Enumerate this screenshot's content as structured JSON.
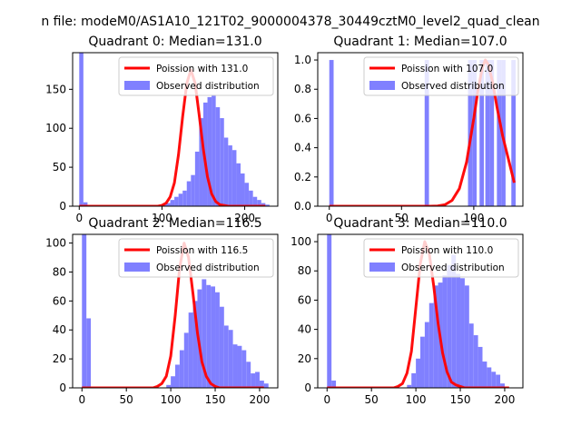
{
  "figure": {
    "suptitle": "n file: modeM0/AS1A10_121T02_9000004378_30449cztM0_level2_quad_clean"
  },
  "colors": {
    "poisson_line": "#ff0000",
    "histogram": "#8080ff",
    "axis": "#000000",
    "background": "#ffffff"
  },
  "chart_data": [
    {
      "type": "bar",
      "panel": "top-left",
      "title": "Quadrant 0: Median=131.0",
      "xlabel": "",
      "ylabel": "",
      "xlim": [
        -8,
        240
      ],
      "ylim": [
        0,
        197
      ],
      "xticks": [
        0,
        100,
        200
      ],
      "yticks": [
        0,
        50,
        100,
        150
      ],
      "legend": {
        "placement": "top-right",
        "entries": [
          "Poission with 131.0",
          "Observed distribution"
        ]
      },
      "bin_width": 5,
      "histogram": {
        "name": "Observed distribution",
        "x": [
          0,
          5,
          100,
          105,
          110,
          115,
          120,
          125,
          130,
          135,
          140,
          145,
          150,
          155,
          160,
          165,
          170,
          175,
          180,
          185,
          190,
          195,
          200,
          205,
          210,
          215,
          220,
          225
        ],
        "values": [
          197,
          5,
          2,
          4,
          8,
          12,
          16,
          20,
          32,
          40,
          70,
          113,
          133,
          140,
          143,
          127,
          113,
          88,
          78,
          72,
          55,
          42,
          30,
          20,
          12,
          8,
          4,
          2
        ]
      },
      "poisson": {
        "name": "Poission with 131.0",
        "x": [
          0,
          95,
          100,
          105,
          110,
          115,
          120,
          125,
          130,
          135,
          140,
          145,
          150,
          155,
          160,
          165,
          170,
          175,
          180,
          185,
          190,
          195,
          200,
          205,
          210,
          215,
          220,
          225
        ],
        "values": [
          0,
          0,
          1,
          4,
          12,
          30,
          66,
          115,
          158,
          175,
          158,
          117,
          73,
          38,
          16,
          6,
          2,
          1,
          0,
          0,
          0,
          0,
          0,
          0,
          0,
          0,
          0,
          0
        ]
      }
    },
    {
      "type": "bar",
      "panel": "top-right",
      "title": "Quadrant 1: Median=107.0",
      "xlabel": "",
      "ylabel": "",
      "xlim": [
        -8,
        134
      ],
      "ylim": [
        0,
        1.05
      ],
      "xticks": [
        0,
        50,
        100
      ],
      "yticks": [
        0.0,
        0.2,
        0.4,
        0.6,
        0.8,
        1.0
      ],
      "legend": {
        "placement": "top-right",
        "entries": [
          "Poission with 107.0",
          "Observed distribution"
        ]
      },
      "bin_width": 3,
      "histogram": {
        "name": "Observed distribution",
        "x": [
          0,
          66,
          96,
          99,
          104,
          108,
          111,
          116,
          119,
          126
        ],
        "values": [
          1,
          1,
          1,
          1,
          1,
          1,
          1,
          1,
          1,
          1
        ]
      },
      "poisson": {
        "name": "Poission with 107.0",
        "x": [
          0,
          70,
          75,
          80,
          85,
          90,
          95,
          100,
          103,
          106,
          108,
          110,
          113,
          116,
          120,
          125,
          128
        ],
        "values": [
          0,
          0,
          0.002,
          0.01,
          0.04,
          0.12,
          0.3,
          0.6,
          0.8,
          0.95,
          1.0,
          0.97,
          0.85,
          0.68,
          0.48,
          0.28,
          0.16
        ]
      }
    },
    {
      "type": "bar",
      "panel": "bottom-left",
      "title": "Quadrant 2: Median=116.5",
      "xlabel": "",
      "ylabel": "",
      "xlim": [
        -10.5,
        220.5
      ],
      "ylim": [
        0,
        106
      ],
      "xticks": [
        0,
        50,
        100,
        150,
        200
      ],
      "yticks": [
        0,
        20,
        40,
        60,
        80,
        100
      ],
      "legend": {
        "placement": "top-right",
        "entries": [
          "Poission with 116.5",
          "Observed distribution"
        ]
      },
      "bin_width": 5,
      "histogram": {
        "name": "Observed distribution",
        "x": [
          0,
          5,
          95,
          100,
          105,
          110,
          115,
          120,
          125,
          130,
          135,
          140,
          145,
          150,
          155,
          160,
          165,
          170,
          175,
          180,
          185,
          190,
          195,
          200,
          205
        ],
        "values": [
          106,
          48,
          2,
          8,
          16,
          26,
          38,
          52,
          60,
          68,
          75,
          71,
          70,
          66,
          56,
          43,
          40,
          30,
          29,
          26,
          18,
          10,
          11,
          5,
          3
        ]
      },
      "poisson": {
        "name": "Poission with 116.5",
        "x": [
          0,
          80,
          85,
          90,
          95,
          100,
          105,
          110,
          115,
          120,
          125,
          130,
          135,
          140,
          145,
          150,
          155,
          160,
          165,
          170,
          175,
          180,
          185,
          190,
          195,
          200,
          205
        ],
        "values": [
          0,
          0,
          1,
          3,
          8,
          22,
          50,
          83,
          100,
          90,
          65,
          38,
          18,
          8,
          3,
          1,
          0,
          0,
          0,
          0,
          0,
          0,
          0,
          0,
          0,
          0,
          0
        ]
      }
    },
    {
      "type": "bar",
      "panel": "bottom-right",
      "title": "Quadrant 3: Median=110.0",
      "xlabel": "",
      "ylabel": "",
      "xlim": [
        -10.5,
        220.5
      ],
      "ylim": [
        0,
        105
      ],
      "xticks": [
        0,
        50,
        100,
        150,
        200
      ],
      "yticks": [
        0,
        20,
        40,
        60,
        80,
        100
      ],
      "legend": {
        "placement": "top-right",
        "entries": [
          "Poission with 110.0",
          "Observed distribution"
        ]
      },
      "bin_width": 5,
      "histogram": {
        "name": "Observed distribution",
        "x": [
          0,
          5,
          90,
          95,
          100,
          105,
          110,
          115,
          120,
          125,
          130,
          135,
          140,
          145,
          150,
          155,
          160,
          165,
          170,
          175,
          180,
          185,
          190,
          195
        ],
        "values": [
          105,
          5,
          2,
          10,
          20,
          35,
          45,
          58,
          70,
          72,
          77,
          84,
          91,
          78,
          75,
          70,
          44,
          36,
          28,
          18,
          14,
          11,
          9,
          3
        ]
      },
      "poisson": {
        "name": "Poission with 110.0",
        "x": [
          0,
          75,
          80,
          85,
          90,
          95,
          100,
          105,
          110,
          115,
          120,
          125,
          130,
          135,
          140,
          145,
          150,
          155,
          160,
          165,
          170,
          175,
          180,
          185,
          190,
          195,
          200,
          205
        ],
        "values": [
          0,
          0,
          1,
          3,
          10,
          25,
          55,
          85,
          100,
          92,
          70,
          44,
          24,
          11,
          4,
          2,
          1,
          0,
          0,
          0,
          0,
          0,
          0,
          0,
          0,
          0,
          0,
          0
        ]
      }
    }
  ]
}
